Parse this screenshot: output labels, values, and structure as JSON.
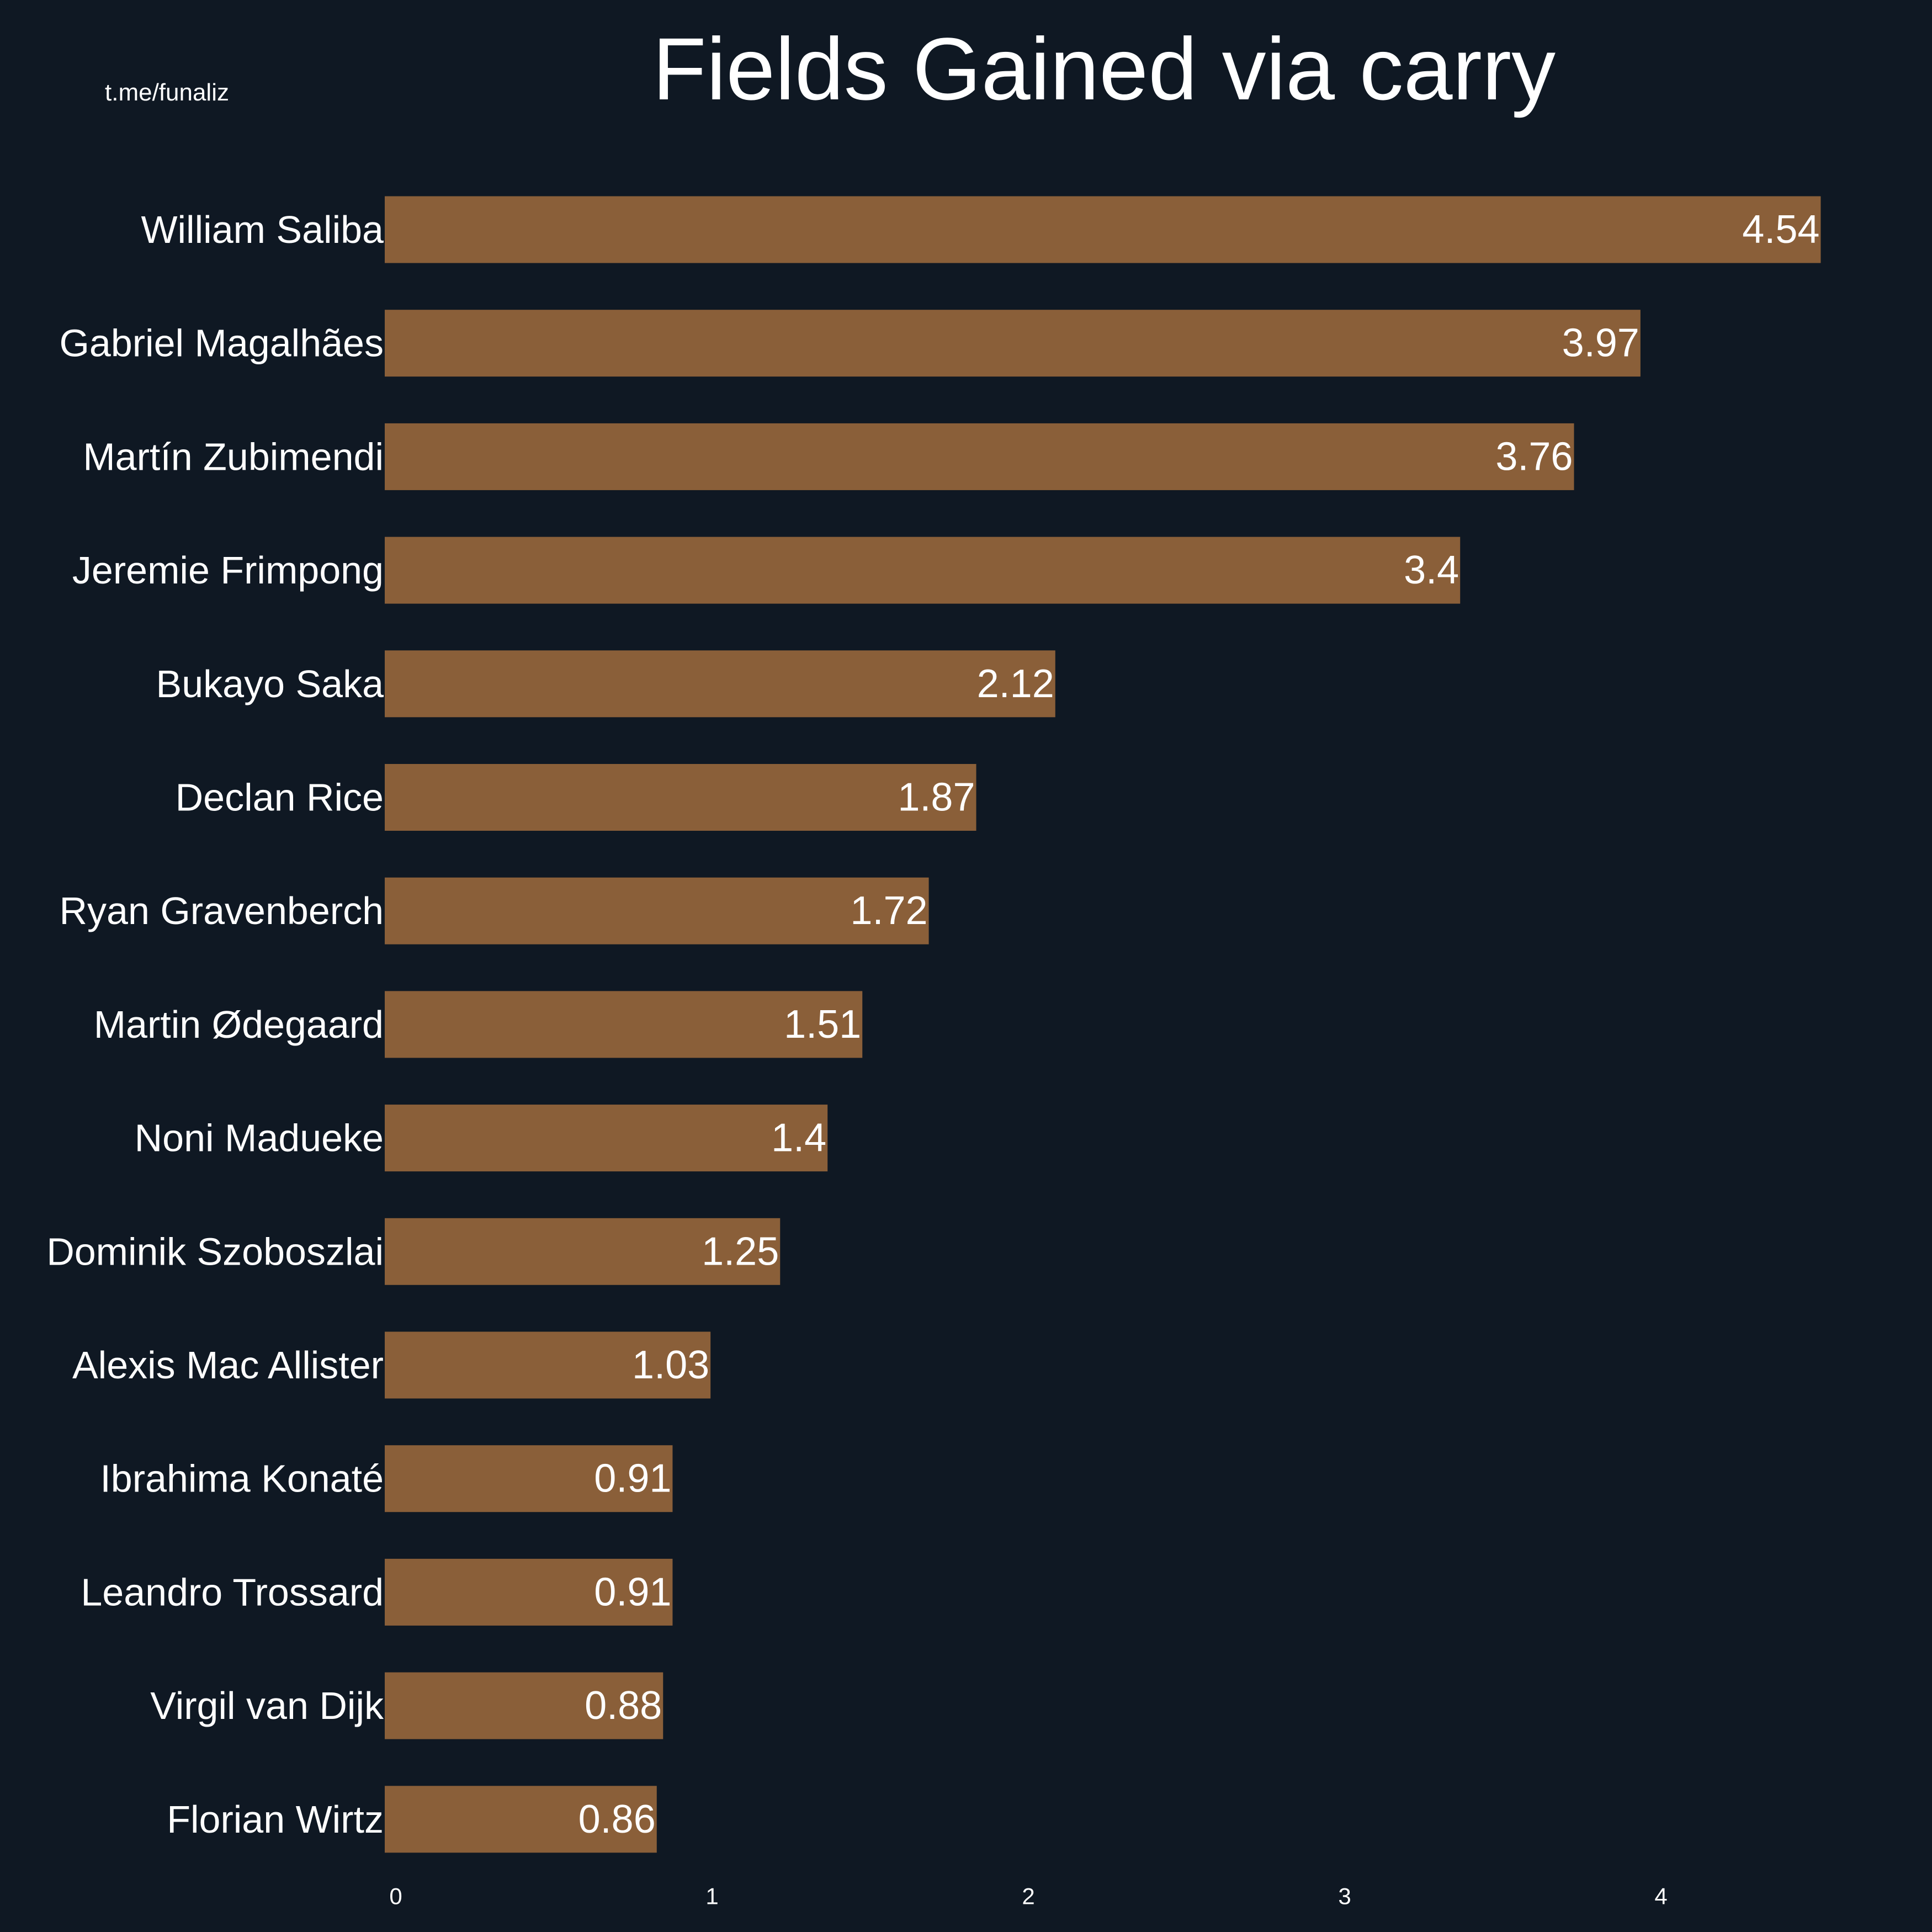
{
  "header": {
    "watermark": "t.me/funaliz"
  },
  "colors": {
    "background": "#0f1823",
    "bar": "#8a5f39",
    "text": "#ffffff"
  },
  "chart_data": {
    "type": "bar",
    "orientation": "horizontal",
    "title": "Fields Gained via carry",
    "xlabel": "",
    "ylabel": "",
    "categories": [
      "William Saliba",
      "Gabriel Magalhães",
      "Martín Zubimendi",
      "Jeremie Frimpong",
      "Bukayo Saka",
      "Declan Rice",
      "Ryan Gravenberch",
      "Martin Ødegaard",
      "Noni Madueke",
      "Dominik Szoboszlai",
      "Alexis Mac Allister",
      "Ibrahima Konaté",
      "Leandro Trossard",
      "Virgil van Dijk",
      "Florian Wirtz"
    ],
    "values": [
      4.54,
      3.97,
      3.76,
      3.4,
      2.12,
      1.87,
      1.72,
      1.51,
      1.4,
      1.25,
      1.03,
      0.91,
      0.91,
      0.88,
      0.86
    ],
    "value_labels": [
      "4.54",
      "3.97",
      "3.76",
      "3.4",
      "2.12",
      "1.87",
      "1.72",
      "1.51",
      "1.4",
      "1.25",
      "1.03",
      "0.91",
      "0.91",
      "0.88",
      "0.86"
    ],
    "xticks": [
      "0",
      "1",
      "2",
      "3",
      "4"
    ],
    "xlim": [
      0,
      4.7
    ],
    "grid": false,
    "legend": "none"
  }
}
